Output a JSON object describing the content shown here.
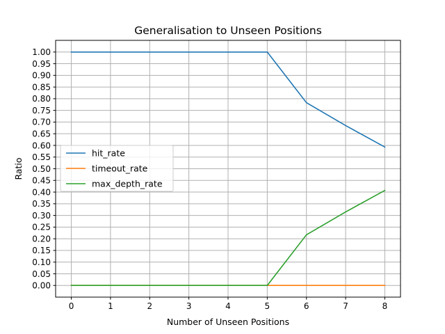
{
  "chart_data": {
    "type": "line",
    "title": "Generalisation to Unseen Positions",
    "xlabel": "Number of Unseen Positions",
    "ylabel": "Ratio",
    "x": [
      0,
      1,
      2,
      3,
      4,
      5,
      6,
      7,
      8
    ],
    "xticks": [
      "0",
      "1",
      "2",
      "3",
      "4",
      "5",
      "6",
      "7",
      "8"
    ],
    "yticks": [
      "0.00",
      "0.05",
      "0.10",
      "0.15",
      "0.20",
      "0.25",
      "0.30",
      "0.35",
      "0.40",
      "0.45",
      "0.50",
      "0.55",
      "0.60",
      "0.65",
      "0.70",
      "0.75",
      "0.80",
      "0.85",
      "0.90",
      "0.95",
      "1.00"
    ],
    "xlim": [
      -0.4,
      8.4
    ],
    "ylim": [
      -0.05,
      1.05
    ],
    "grid": true,
    "legend_position": "center-left",
    "series": [
      {
        "name": "hit_rate",
        "color": "#1f77b4",
        "values": [
          1.0,
          1.0,
          1.0,
          1.0,
          1.0,
          1.0,
          0.783,
          0.685,
          0.593
        ]
      },
      {
        "name": "timeout_rate",
        "color": "#ff7f0e",
        "values": [
          0.0,
          0.0,
          0.0,
          0.0,
          0.0,
          0.0,
          0.0,
          0.0,
          0.0
        ]
      },
      {
        "name": "max_depth_rate",
        "color": "#2ca02c",
        "values": [
          0.0,
          0.0,
          0.0,
          0.0,
          0.0,
          0.0,
          0.217,
          0.315,
          0.407
        ]
      }
    ]
  }
}
